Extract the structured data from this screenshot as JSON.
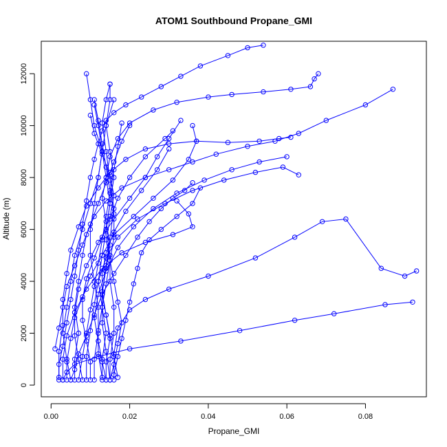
{
  "chart_data": {
    "type": "line",
    "title": "ATOM1 Southbound Propane_GMI",
    "xlabel": "Propane_GMI",
    "ylabel": "Altitude (m)",
    "xlim": [
      -0.0025,
      0.0955
    ],
    "ylim": [
      -450,
      13250
    ],
    "x_ticks": [
      0.0,
      0.02,
      0.04,
      0.06,
      0.08
    ],
    "x_tick_labels": [
      "0.00",
      "0.02",
      "0.04",
      "0.06",
      "0.08"
    ],
    "y_ticks": [
      0,
      2000,
      4000,
      6000,
      8000,
      10000,
      12000
    ],
    "y_tick_labels": [
      "0",
      "2000",
      "4000",
      "6000",
      "8000",
      "10000",
      "12000"
    ],
    "grid": false,
    "legend": "none",
    "marker": "open-circle",
    "color": "#0000ff",
    "series": [
      {
        "x": [
          0.002,
          0.002,
          0.003,
          0.004,
          0.005,
          0.006,
          0.007,
          0.008,
          0.009,
          0.01,
          0.011,
          0.012,
          0.013,
          0.014,
          0.016,
          0.019,
          0.023,
          0.028,
          0.033,
          0.038,
          0.045,
          0.05,
          0.054
        ],
        "y": [
          200,
          800,
          1500,
          2400,
          3300,
          4200,
          5200,
          6200,
          7100,
          8000,
          8700,
          9300,
          9800,
          10200,
          10500,
          10800,
          11100,
          11500,
          11900,
          12300,
          12700,
          13000,
          13100
        ]
      },
      {
        "x": [
          0.014,
          0.014,
          0.015,
          0.014,
          0.013,
          0.014,
          0.015,
          0.014,
          0.013,
          0.014,
          0.015,
          0.017,
          0.02,
          0.026,
          0.032,
          0.04,
          0.046,
          0.054,
          0.061,
          0.066,
          0.067,
          0.068
        ],
        "y": [
          200,
          900,
          1800,
          2700,
          3600,
          4500,
          5400,
          6300,
          7200,
          8000,
          8800,
          9500,
          10100,
          10600,
          10900,
          11100,
          11200,
          11300,
          11400,
          11500,
          11800,
          12000
        ]
      },
      {
        "x": [
          0.006,
          0.006,
          0.007,
          0.006,
          0.007,
          0.008,
          0.009,
          0.011,
          0.014,
          0.018,
          0.024,
          0.03,
          0.036,
          0.042,
          0.05,
          0.057,
          0.063,
          0.07,
          0.08,
          0.087
        ],
        "y": [
          200,
          1000,
          2000,
          3000,
          4000,
          5000,
          5800,
          6500,
          7100,
          7600,
          8000,
          8300,
          8600,
          8900,
          9200,
          9400,
          9700,
          10200,
          10800,
          11400
        ]
      },
      {
        "x": [
          0.016,
          0.016,
          0.017,
          0.02,
          0.024,
          0.03,
          0.04,
          0.052,
          0.062,
          0.069,
          0.075,
          0.084,
          0.09,
          0.093
        ],
        "y": [
          200,
          1200,
          2200,
          2900,
          3300,
          3700,
          4200,
          4900,
          5700,
          6300,
          6400,
          4500,
          4200,
          4400
        ]
      },
      {
        "x": [
          0.003,
          0.004,
          0.006,
          0.012,
          0.02,
          0.033,
          0.048,
          0.062,
          0.072,
          0.085,
          0.092
        ],
        "y": [
          200,
          500,
          800,
          1100,
          1400,
          1700,
          2100,
          2500,
          2750,
          3100,
          3200
        ]
      },
      {
        "x": [
          0.011,
          0.011,
          0.012,
          0.012,
          0.011,
          0.01,
          0.01,
          0.011,
          0.012,
          0.013,
          0.011,
          0.01,
          0.009
        ],
        "y": [
          200,
          1000,
          2000,
          3000,
          4000,
          5000,
          6000,
          7000,
          8000,
          9000,
          10000,
          11000,
          12000
        ]
      },
      {
        "x": [
          0.015,
          0.015,
          0.016,
          0.016,
          0.015,
          0.015,
          0.014,
          0.015,
          0.016,
          0.015,
          0.014,
          0.015,
          0.015
        ],
        "y": [
          200,
          1000,
          2000,
          3000,
          4000,
          5000,
          6000,
          7000,
          8000,
          9000,
          10000,
          11000,
          11600
        ]
      },
      {
        "x": [
          0.005,
          0.004,
          0.003,
          0.004,
          0.005,
          0.006,
          0.008,
          0.01,
          0.012,
          0.013,
          0.012,
          0.011
        ],
        "y": [
          200,
          1000,
          2000,
          3000,
          4000,
          5000,
          6000,
          7000,
          8000,
          9000,
          10000,
          10800
        ]
      },
      {
        "x": [
          0.013,
          0.013,
          0.014,
          0.013,
          0.012,
          0.013,
          0.014,
          0.015,
          0.014,
          0.013,
          0.014,
          0.016
        ],
        "y": [
          200,
          1000,
          2000,
          3000,
          4000,
          5000,
          6000,
          7000,
          8000,
          9000,
          10000,
          11000
        ]
      },
      {
        "x": [
          0.009,
          0.009,
          0.01,
          0.011,
          0.012,
          0.014,
          0.017,
          0.022,
          0.029,
          0.036,
          0.044,
          0.052,
          0.059,
          0.063
        ],
        "y": [
          200,
          1100,
          2100,
          3100,
          4000,
          4900,
          5700,
          6400,
          7000,
          7500,
          7900,
          8200,
          8400,
          8100
        ]
      },
      {
        "x": [
          0.004,
          0.004,
          0.005,
          0.006,
          0.008,
          0.01,
          0.013,
          0.016,
          0.021,
          0.026,
          0.031,
          0.035,
          0.037,
          0.036
        ],
        "y": [
          200,
          900,
          1800,
          2600,
          3400,
          4200,
          5000,
          5800,
          6500,
          7200,
          7900,
          8700,
          9400,
          10000
        ]
      },
      {
        "x": [
          0.015,
          0.016,
          0.017,
          0.018,
          0.017,
          0.016,
          0.015,
          0.014,
          0.015,
          0.017,
          0.02,
          0.024,
          0.029,
          0.031
        ],
        "y": [
          200,
          800,
          1600,
          2400,
          3200,
          4000,
          4800,
          5600,
          6400,
          7200,
          8000,
          8800,
          9500,
          9800
        ]
      },
      {
        "x": [
          0.008,
          0.007,
          0.006,
          0.006,
          0.007,
          0.009,
          0.012,
          0.016,
          0.02,
          0.024,
          0.027,
          0.03,
          0.033
        ],
        "y": [
          200,
          1000,
          1900,
          2800,
          3700,
          4600,
          5500,
          6400,
          7200,
          8000,
          8800,
          9500,
          10200
        ]
      },
      {
        "x": [
          0.002,
          0.002,
          0.003,
          0.003,
          0.004,
          0.005,
          0.007,
          0.009,
          0.012,
          0.015,
          0.019,
          0.024,
          0.03,
          0.037,
          0.045,
          0.053,
          0.058,
          0.061
        ],
        "y": [
          300,
          1300,
          2300,
          3300,
          4300,
          5200,
          6100,
          6900,
          7600,
          8200,
          8700,
          9100,
          9300,
          9400,
          9350,
          9400,
          9500,
          9550
        ]
      },
      {
        "x": [
          0.013,
          0.012,
          0.012,
          0.013,
          0.014,
          0.015,
          0.016,
          0.016,
          0.015,
          0.014,
          0.013,
          0.012,
          0.011
        ],
        "y": [
          300,
          1200,
          2100,
          3000,
          3900,
          4800,
          5700,
          6600,
          7500,
          8400,
          9300,
          10200,
          11000
        ]
      },
      {
        "x": [
          0.016,
          0.017,
          0.018,
          0.019,
          0.02,
          0.021,
          0.022,
          0.023,
          0.025,
          0.028,
          0.032,
          0.036,
          0.038
        ],
        "y": [
          400,
          1100,
          1800,
          2500,
          3200,
          3900,
          4500,
          5100,
          5600,
          6000,
          6500,
          7000,
          7600
        ]
      },
      {
        "x": [
          0.005,
          0.006,
          0.007,
          0.009,
          0.011,
          0.013,
          0.016,
          0.019,
          0.022,
          0.025,
          0.028,
          0.031,
          0.034,
          0.036
        ],
        "y": [
          200,
          600,
          1200,
          1900,
          2700,
          3500,
          4300,
          5000,
          5700,
          6300,
          6800,
          7200,
          7500,
          7800
        ]
      },
      {
        "x": [
          0.014,
          0.013,
          0.012,
          0.011,
          0.012,
          0.014,
          0.017,
          0.021,
          0.026,
          0.032,
          0.039,
          0.046,
          0.053,
          0.06
        ],
        "y": [
          200,
          900,
          1700,
          2600,
          3500,
          4400,
          5300,
          6100,
          6800,
          7400,
          7900,
          8300,
          8600,
          8800
        ]
      },
      {
        "x": [
          0.01,
          0.01,
          0.009,
          0.008,
          0.008,
          0.009,
          0.011,
          0.013,
          0.015,
          0.016,
          0.015,
          0.013,
          0.011,
          0.01
        ],
        "y": [
          200,
          900,
          1700,
          2500,
          3300,
          4100,
          4900,
          5700,
          6500,
          7300,
          8100,
          8900,
          9700,
          10400
        ]
      },
      {
        "x": [
          0.003,
          0.003,
          0.004,
          0.006,
          0.009,
          0.013,
          0.018,
          0.024,
          0.031,
          0.036,
          0.035,
          0.032
        ],
        "y": [
          200,
          1000,
          1900,
          2800,
          3700,
          4500,
          5100,
          5500,
          5800,
          6100,
          6600,
          7100
        ]
      },
      {
        "x": [
          0.017,
          0.016,
          0.015,
          0.014,
          0.013,
          0.013,
          0.014,
          0.016,
          0.019,
          0.023,
          0.027,
          0.03
        ],
        "y": [
          300,
          1100,
          1900,
          2700,
          3500,
          4300,
          5100,
          5900,
          6700,
          7500,
          8300,
          9100
        ]
      },
      {
        "x": [
          0.007,
          0.008,
          0.009,
          0.01,
          0.011,
          0.012,
          0.013,
          0.014,
          0.015,
          0.016,
          0.017,
          0.018
        ],
        "y": [
          200,
          1100,
          2000,
          2900,
          3800,
          4700,
          5600,
          6500,
          7400,
          8300,
          9200,
          10100
        ]
      },
      {
        "x": [
          0.001,
          0.002,
          0.003,
          0.004,
          0.006,
          0.008,
          0.01,
          0.012,
          0.014,
          0.016,
          0.018,
          0.02
        ],
        "y": [
          1400,
          2200,
          3000,
          3800,
          4600,
          5400,
          6200,
          7000,
          7800,
          8600,
          9400,
          10000
        ]
      },
      {
        "x": [
          0.015,
          0.014,
          0.013,
          0.013,
          0.014,
          0.015,
          0.016,
          0.015,
          0.014,
          0.013,
          0.014,
          0.015
        ],
        "y": [
          200,
          1300,
          2400,
          3500,
          4600,
          5700,
          6800,
          7900,
          9000,
          10100,
          11000,
          11600
        ]
      }
    ]
  }
}
